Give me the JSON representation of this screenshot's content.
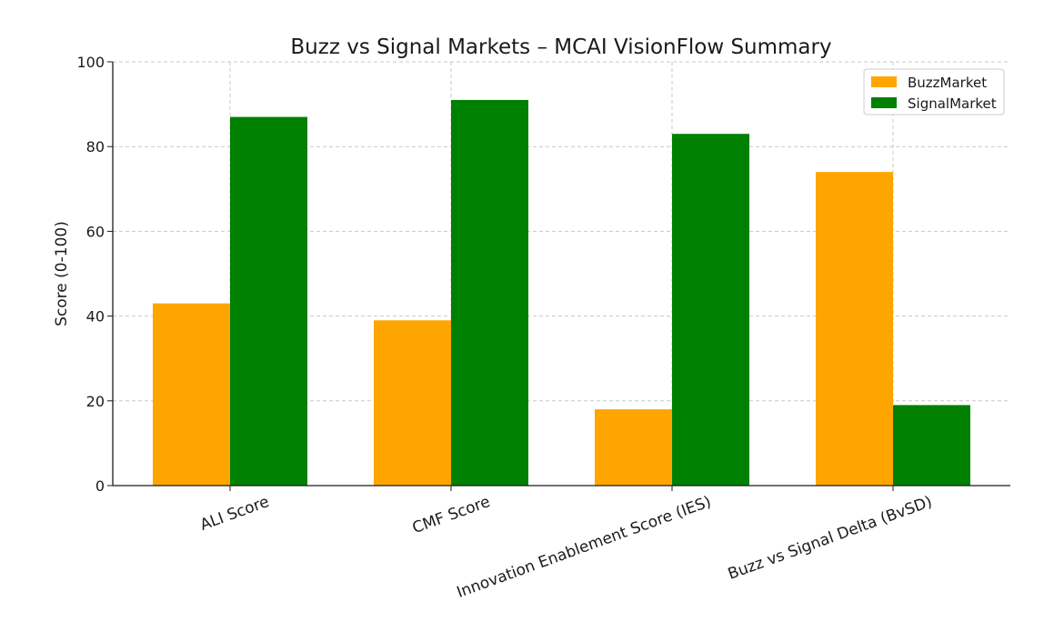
{
  "chart_data": {
    "type": "bar",
    "title": "Buzz vs Signal Markets – MCAI VisionFlow Summary",
    "xlabel": "",
    "ylabel": "Score (0-100)",
    "ylim": [
      0,
      100
    ],
    "yticks": [
      "0",
      "20",
      "40",
      "60",
      "80",
      "100"
    ],
    "grid": true,
    "legend_position": "top-right",
    "categories": [
      "ALI Score",
      "CMF Score",
      "Innovation Enablement Score (IES)",
      "Buzz vs Signal Delta (BvSD)"
    ],
    "series": [
      {
        "name": "BuzzMarket",
        "color": "#ffa500",
        "values": [
          43,
          39,
          18,
          74
        ]
      },
      {
        "name": "SignalMarket",
        "color": "#008000",
        "values": [
          87,
          91,
          83,
          19
        ]
      }
    ]
  }
}
